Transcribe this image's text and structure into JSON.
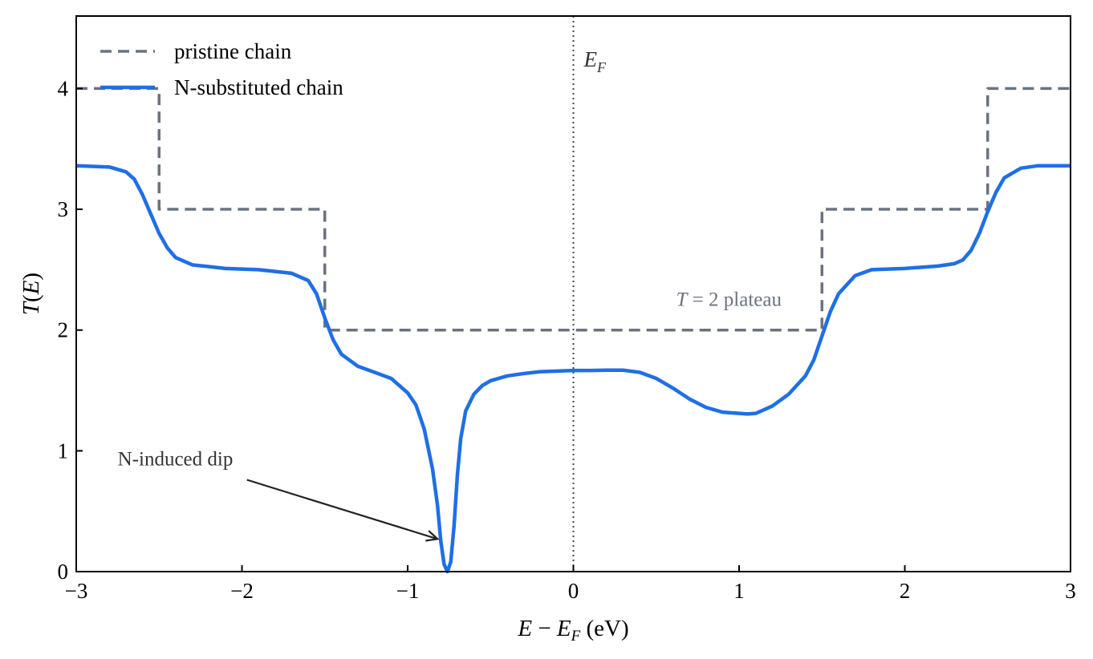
{
  "chart_data": {
    "type": "line",
    "xlabel": "E − E_F (eV)",
    "ylabel": "T(E)",
    "xlim": [
      -3,
      3
    ],
    "ylim": [
      0,
      4.6
    ],
    "x_ticks": [
      -3,
      -2,
      -1,
      0,
      1,
      2,
      3
    ],
    "x_tick_labels": [
      "−3",
      "−2",
      "−1",
      "0",
      "1",
      "2",
      "3"
    ],
    "y_ticks": [
      0,
      1,
      2,
      3,
      4
    ],
    "y_tick_labels": [
      "0",
      "1",
      "2",
      "3",
      "4"
    ],
    "grid": false,
    "legend_position": "top-left",
    "fermi_level": {
      "x": 0,
      "label": "E_F"
    },
    "series": [
      {
        "name": "pristine chain",
        "style": "dashed",
        "color": "#6b7280",
        "x": [
          -3,
          -2.5,
          -2.5,
          -1.5,
          -1.5,
          1.5,
          1.5,
          2.5,
          2.5,
          3
        ],
        "y": [
          4,
          4,
          3,
          3,
          2,
          2,
          3,
          3,
          4,
          4
        ]
      },
      {
        "name": "N-substituted chain",
        "style": "solid",
        "color": "#1f6fe5",
        "x": [
          -3.0,
          -2.8,
          -2.7,
          -2.65,
          -2.6,
          -2.55,
          -2.5,
          -2.45,
          -2.4,
          -2.3,
          -2.1,
          -1.9,
          -1.7,
          -1.6,
          -1.55,
          -1.5,
          -1.45,
          -1.4,
          -1.3,
          -1.2,
          -1.1,
          -1.0,
          -0.95,
          -0.9,
          -0.85,
          -0.82,
          -0.8,
          -0.78,
          -0.76,
          -0.74,
          -0.72,
          -0.7,
          -0.68,
          -0.65,
          -0.6,
          -0.55,
          -0.5,
          -0.4,
          -0.3,
          -0.2,
          -0.1,
          0.0,
          0.1,
          0.2,
          0.3,
          0.4,
          0.5,
          0.6,
          0.7,
          0.8,
          0.9,
          1.0,
          1.05,
          1.1,
          1.2,
          1.3,
          1.4,
          1.45,
          1.5,
          1.55,
          1.6,
          1.7,
          1.8,
          2.0,
          2.2,
          2.3,
          2.35,
          2.4,
          2.45,
          2.5,
          2.55,
          2.6,
          2.7,
          2.8,
          3.0
        ],
        "y": [
          3.36,
          3.35,
          3.31,
          3.25,
          3.12,
          2.96,
          2.8,
          2.68,
          2.6,
          2.54,
          2.51,
          2.5,
          2.47,
          2.41,
          2.3,
          2.1,
          1.92,
          1.8,
          1.7,
          1.65,
          1.6,
          1.48,
          1.38,
          1.18,
          0.85,
          0.55,
          0.25,
          0.06,
          0.0,
          0.08,
          0.38,
          0.8,
          1.1,
          1.33,
          1.47,
          1.54,
          1.58,
          1.62,
          1.64,
          1.655,
          1.66,
          1.665,
          1.665,
          1.668,
          1.668,
          1.65,
          1.6,
          1.52,
          1.43,
          1.36,
          1.32,
          1.31,
          1.305,
          1.31,
          1.37,
          1.47,
          1.62,
          1.75,
          1.95,
          2.15,
          2.3,
          2.45,
          2.5,
          2.51,
          2.53,
          2.55,
          2.58,
          2.66,
          2.8,
          2.98,
          3.14,
          3.26,
          3.34,
          3.36,
          3.36
        ]
      }
    ],
    "annotations": [
      {
        "text": "N-induced dip",
        "text_x": -2.75,
        "text_y": 0.88,
        "arrow_to_x": -0.82,
        "arrow_to_y": 0.27,
        "arrow_from_x": -1.97,
        "arrow_from_y": 0.76
      },
      {
        "text": "T = 2 plateau",
        "x": 0.62,
        "y": 2.2
      }
    ]
  }
}
